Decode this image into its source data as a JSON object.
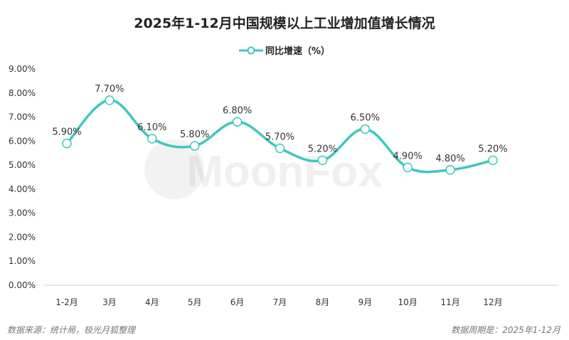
{
  "chart_data": {
    "type": "line",
    "title": "2025年1-12月中国规模以上工业增加值增长情况",
    "categories": [
      "1-2月",
      "3月",
      "4月",
      "5月",
      "6月",
      "7月",
      "8月",
      "9月",
      "10月",
      "11月",
      "12月"
    ],
    "series": [
      {
        "name": "同比增速（%）",
        "values": [
          5.9,
          7.7,
          6.1,
          5.8,
          6.8,
          5.7,
          5.2,
          6.5,
          4.9,
          4.8,
          5.2
        ],
        "labels": [
          "5.90%",
          "7.70%",
          "6.10%",
          "5.80%",
          "6.80%",
          "5.70%",
          "5.20%",
          "6.50%",
          "4.90%",
          "4.80%",
          "5.20%"
        ]
      }
    ],
    "yticks": [
      "0.00%",
      "1.00%",
      "2.00%",
      "3.00%",
      "4.00%",
      "5.00%",
      "6.00%",
      "7.00%",
      "8.00%",
      "9.00%"
    ],
    "ylim": [
      0,
      9
    ],
    "smooth": true,
    "grid": false,
    "legend": "top",
    "color": "#3cc8bf"
  },
  "watermark": "MoonFox",
  "footer": {
    "source": "数据来源：统计局，极光月狐整理",
    "period": "数据周期是：2025年1-12月"
  }
}
